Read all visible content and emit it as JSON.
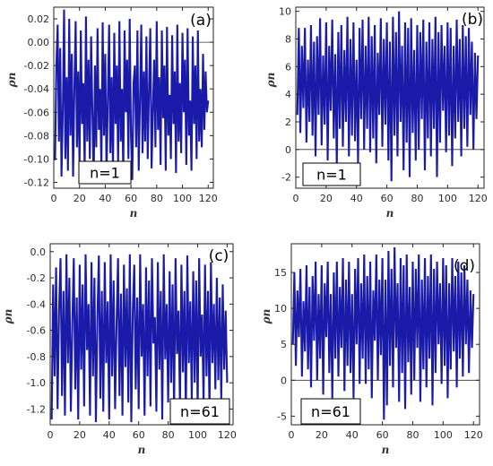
{
  "chart_data": [
    {
      "type": "line",
      "panel_label": "(a)",
      "xlabel": "n",
      "ylabel": "ρn",
      "xlim": [
        0,
        124
      ],
      "ylim": [
        -0.125,
        0.03
      ],
      "xticks": [
        0,
        20,
        40,
        60,
        80,
        100,
        120
      ],
      "yticks": [
        0.02,
        0.0,
        -0.02,
        -0.04,
        -0.06,
        -0.08,
        -0.1,
        -0.12
      ],
      "ytick_labels": [
        "0.02",
        "0.00",
        "-0.02",
        "-0.04",
        "-0.06",
        "-0.08",
        "-0.10",
        "-0.12"
      ],
      "zero_line": true,
      "box_text": "n=1",
      "series": [
        {
          "color": "#1a1aa8",
          "x": [
            1,
            2,
            3,
            4,
            5,
            6,
            7,
            8,
            9,
            10,
            11,
            12,
            13,
            14,
            15,
            16,
            17,
            18,
            19,
            20,
            21,
            22,
            23,
            24,
            25,
            26,
            27,
            28,
            29,
            30,
            31,
            32,
            33,
            34,
            35,
            36,
            37,
            38,
            39,
            40,
            41,
            42,
            43,
            44,
            45,
            46,
            47,
            48,
            49,
            50,
            51,
            52,
            53,
            54,
            55,
            56,
            57,
            58,
            59,
            60,
            61,
            62,
            63,
            64,
            65,
            66,
            67,
            68,
            69,
            70,
            71,
            72,
            73,
            74,
            75,
            76,
            77,
            78,
            79,
            80,
            81,
            82,
            83,
            84,
            85,
            86,
            87,
            88,
            89,
            90,
            91,
            92,
            93,
            94,
            95,
            96,
            97,
            98,
            99,
            100,
            101,
            102,
            103,
            104,
            105,
            106,
            107,
            108,
            109,
            110,
            111,
            112,
            113,
            114,
            115,
            116,
            117,
            118,
            119,
            120
          ],
          "y": [
            -0.101,
            -0.02,
            0.015,
            -0.085,
            -0.005,
            -0.115,
            -0.06,
            0.028,
            -0.1,
            -0.03,
            -0.11,
            0.02,
            -0.08,
            -0.01,
            -0.115,
            -0.04,
            0.018,
            -0.09,
            -0.025,
            -0.105,
            0.01,
            -0.07,
            -0.035,
            -0.11,
            0.022,
            -0.085,
            -0.015,
            -0.1,
            0.005,
            -0.06,
            -0.12,
            -0.02,
            -0.09,
            0.012,
            -0.075,
            -0.04,
            -0.108,
            0.017,
            -0.08,
            -0.01,
            -0.115,
            -0.05,
            0.015,
            -0.095,
            -0.03,
            -0.11,
            0.008,
            -0.07,
            -0.02,
            -0.104,
            0.018,
            -0.085,
            -0.04,
            -0.112,
            0.01,
            -0.06,
            -0.015,
            -0.1,
            0.02,
            -0.08,
            -0.118,
            -0.035,
            -0.02,
            -0.09,
            0.01,
            -0.11,
            -0.05,
            0.015,
            -0.095,
            -0.025,
            -0.085,
            0.005,
            -0.1,
            -0.04,
            0.012,
            -0.108,
            -0.06,
            -0.015,
            -0.09,
            0.018,
            -0.075,
            -0.03,
            -0.105,
            0.01,
            -0.065,
            -0.02,
            -0.11,
            0.013,
            -0.08,
            -0.045,
            -0.1,
            0.006,
            -0.07,
            -0.025,
            -0.112,
            0.015,
            -0.085,
            -0.035,
            -0.095,
            0.008,
            -0.06,
            -0.015,
            -0.105,
            0.012,
            -0.08,
            -0.05,
            -0.11,
            0.005,
            -0.07,
            -0.02,
            -0.1,
            0.01,
            -0.085,
            -0.04,
            -0.09,
            -0.01,
            -0.075,
            -0.025,
            -0.06,
            -0.05
          ]
        }
      ]
    },
    {
      "type": "line",
      "panel_label": "(b)",
      "xlabel": "n",
      "ylabel": "ρn",
      "xlim": [
        0,
        124
      ],
      "ylim": [
        -2.8,
        10.3
      ],
      "xticks": [
        0,
        20,
        40,
        60,
        80,
        100,
        120
      ],
      "yticks": [
        10,
        8,
        6,
        4,
        2,
        0,
        -2
      ],
      "ytick_labels": [
        "10",
        "8",
        "6",
        "4",
        "2",
        "0",
        "-2"
      ],
      "zero_line": true,
      "box_text": "n=1",
      "series": [
        {
          "color": "#1a1aa8",
          "x": [
            1,
            2,
            3,
            4,
            5,
            6,
            7,
            8,
            9,
            10,
            11,
            12,
            13,
            14,
            15,
            16,
            17,
            18,
            19,
            20,
            21,
            22,
            23,
            24,
            25,
            26,
            27,
            28,
            29,
            30,
            31,
            32,
            33,
            34,
            35,
            36,
            37,
            38,
            39,
            40,
            41,
            42,
            43,
            44,
            45,
            46,
            47,
            48,
            49,
            50,
            51,
            52,
            53,
            54,
            55,
            56,
            57,
            58,
            59,
            60,
            61,
            62,
            63,
            64,
            65,
            66,
            67,
            68,
            69,
            70,
            71,
            72,
            73,
            74,
            75,
            76,
            77,
            78,
            79,
            80,
            81,
            82,
            83,
            84,
            85,
            86,
            87,
            88,
            89,
            90,
            91,
            92,
            93,
            94,
            95,
            96,
            97,
            98,
            99,
            100,
            101,
            102,
            103,
            104,
            105,
            106,
            107,
            108,
            109,
            110,
            111,
            112,
            113,
            114,
            115,
            116,
            117,
            118,
            119,
            120
          ],
          "y": [
            2.5,
            8.8,
            1.2,
            7.5,
            3.0,
            8.8,
            0.5,
            6.5,
            2.0,
            9.0,
            1.0,
            7.8,
            -0.5,
            8.2,
            2.5,
            9.5,
            0.3,
            6.8,
            1.8,
            9.2,
            -0.8,
            7.5,
            2.8,
            9.4,
            0.8,
            6.9,
            -1.2,
            8.5,
            1.5,
            9.0,
            0.2,
            7.2,
            2.0,
            9.6,
            -0.5,
            8.0,
            1.0,
            9.2,
            0.6,
            6.5,
            -1.0,
            8.8,
            2.2,
            9.4,
            0.0,
            7.5,
            1.5,
            9.6,
            -0.2,
            8.2,
            0.8,
            9.0,
            -1.0,
            7.0,
            2.5,
            9.5,
            0.2,
            8.0,
            1.8,
            9.2,
            -0.8,
            7.8,
            -2.3,
            9.6,
            1.0,
            8.5,
            -0.5,
            10.0,
            2.0,
            7.5,
            -1.5,
            9.2,
            0.5,
            8.8,
            -2.0,
            9.5,
            1.2,
            7.2,
            -0.8,
            9.0,
            0.0,
            8.5,
            2.2,
            9.4,
            -1.5,
            7.8,
            0.8,
            9.2,
            -0.5,
            8.0,
            1.5,
            9.6,
            -2.0,
            8.5,
            0.5,
            9.0,
            2.8,
            7.5,
            -0.2,
            9.2,
            1.0,
            8.8,
            -1.2,
            7.5,
            0.8,
            9.4,
            2.0,
            8.0,
            -0.5,
            9.0,
            1.5,
            8.2,
            0.2,
            8.8,
            2.5,
            7.8,
            0.0,
            7.0,
            2.2,
            6.8
          ]
        }
      ]
    },
    {
      "type": "line",
      "panel_label": "(c)",
      "xlabel": "n",
      "ylabel": "ρn",
      "xlim": [
        0,
        124
      ],
      "ylim": [
        -1.32,
        0.06
      ],
      "xticks": [
        0,
        20,
        40,
        60,
        80,
        100,
        120
      ],
      "yticks": [
        0.0,
        -0.2,
        -0.4,
        -0.6,
        -0.8,
        -1.0,
        -1.2
      ],
      "ytick_labels": [
        "0.0",
        "-0.2",
        "-0.4",
        "-0.6",
        "-0.8",
        "-1.0",
        "-1.2"
      ],
      "zero_line": false,
      "box_text": "n=61",
      "series": [
        {
          "color": "#1a1aa8",
          "x": [
            1,
            2,
            3,
            4,
            5,
            6,
            7,
            8,
            9,
            10,
            11,
            12,
            13,
            14,
            15,
            16,
            17,
            18,
            19,
            20,
            21,
            22,
            23,
            24,
            25,
            26,
            27,
            28,
            29,
            30,
            31,
            32,
            33,
            34,
            35,
            36,
            37,
            38,
            39,
            40,
            41,
            42,
            43,
            44,
            45,
            46,
            47,
            48,
            49,
            50,
            51,
            52,
            53,
            54,
            55,
            56,
            57,
            58,
            59,
            60,
            61,
            62,
            63,
            64,
            65,
            66,
            67,
            68,
            69,
            70,
            71,
            72,
            73,
            74,
            75,
            76,
            77,
            78,
            79,
            80,
            81,
            82,
            83,
            84,
            85,
            86,
            87,
            88,
            89,
            90,
            91,
            92,
            93,
            94,
            95,
            96,
            97,
            98,
            99,
            100,
            101,
            102,
            103,
            104,
            105,
            106,
            107,
            108,
            109,
            110,
            111,
            112,
            113,
            114,
            115,
            116,
            117,
            118,
            119,
            120
          ],
          "y": [
            -1.28,
            -0.25,
            -0.95,
            -0.12,
            -1.2,
            -0.45,
            -0.05,
            -1.1,
            -0.3,
            -1.25,
            -0.02,
            -0.85,
            -0.2,
            -1.22,
            -0.55,
            -0.05,
            -1.05,
            -0.35,
            -1.28,
            -0.1,
            -0.9,
            -0.25,
            -1.18,
            -0.02,
            -0.75,
            -0.4,
            -1.25,
            -0.08,
            -0.95,
            -0.2,
            -1.3,
            -0.5,
            -0.03,
            -1.12,
            -0.3,
            -1.22,
            -0.08,
            -0.85,
            -0.38,
            -1.28,
            -0.02,
            -0.95,
            -0.22,
            -1.2,
            -0.55,
            -0.05,
            -1.1,
            -0.32,
            -1.25,
            -0.1,
            -0.88,
            -0.28,
            -1.15,
            -0.02,
            -1.3,
            -0.45,
            -0.1,
            -1.05,
            -0.35,
            -1.2,
            -0.02,
            -0.8,
            -0.4,
            -1.25,
            -0.12,
            -0.95,
            -0.22,
            -1.18,
            -0.05,
            -0.7,
            -0.5,
            -1.22,
            -0.08,
            -0.9,
            -0.3,
            -1.28,
            -0.02,
            -0.82,
            -0.4,
            -1.15,
            -0.15,
            -1.0,
            -0.25,
            -1.22,
            -0.05,
            -0.78,
            -0.45,
            -1.18,
            -0.1,
            -0.92,
            -0.3,
            -1.25,
            -0.03,
            -0.85,
            -0.38,
            -1.12,
            -0.15,
            -1.0,
            -0.22,
            -1.2,
            -0.05,
            -0.8,
            -0.48,
            -1.15,
            -0.1,
            -0.95,
            -0.3,
            -1.22,
            -0.08,
            -0.85,
            -0.4,
            -1.05,
            -0.2,
            -0.98,
            -0.35,
            -1.12,
            -0.25,
            -0.9,
            -0.45,
            -1.0
          ]
        }
      ]
    },
    {
      "type": "line",
      "panel_label": "(d)",
      "xlabel": "n",
      "ylabel": "ρn",
      "xlim": [
        0,
        124
      ],
      "ylim": [
        -6.2,
        19.0
      ],
      "xticks": [
        0,
        20,
        40,
        60,
        80,
        100,
        120
      ],
      "yticks": [
        15,
        10,
        5,
        0,
        -5
      ],
      "ytick_labels": [
        "15",
        "10",
        "5",
        "0",
        "-5"
      ],
      "zero_line": true,
      "box_text": "n=61",
      "series": [
        {
          "color": "#1a1aa8",
          "x": [
            1,
            2,
            3,
            4,
            5,
            6,
            7,
            8,
            9,
            10,
            11,
            12,
            13,
            14,
            15,
            16,
            17,
            18,
            19,
            20,
            21,
            22,
            23,
            24,
            25,
            26,
            27,
            28,
            29,
            30,
            31,
            32,
            33,
            34,
            35,
            36,
            37,
            38,
            39,
            40,
            41,
            42,
            43,
            44,
            45,
            46,
            47,
            48,
            49,
            50,
            51,
            52,
            53,
            54,
            55,
            56,
            57,
            58,
            59,
            60,
            61,
            62,
            63,
            64,
            65,
            66,
            67,
            68,
            69,
            70,
            71,
            72,
            73,
            74,
            75,
            76,
            77,
            78,
            79,
            80,
            81,
            82,
            83,
            84,
            85,
            86,
            87,
            88,
            89,
            90,
            91,
            92,
            93,
            94,
            95,
            96,
            97,
            98,
            99,
            100,
            101,
            102,
            103,
            104,
            105,
            106,
            107,
            108,
            109,
            110,
            111,
            112,
            113,
            114,
            115,
            116,
            117,
            118,
            119,
            120
          ],
          "y": [
            5.0,
            15.0,
            2.0,
            12.5,
            6.0,
            15.5,
            0.5,
            11.0,
            4.0,
            16.0,
            1.5,
            13.0,
            -1.0,
            14.5,
            5.5,
            16.5,
            0.0,
            12.0,
            3.0,
            16.0,
            -2.0,
            13.5,
            6.0,
            16.5,
            1.0,
            12.0,
            -2.5,
            15.0,
            3.0,
            16.5,
            0.5,
            13.0,
            4.5,
            17.0,
            -1.5,
            14.0,
            2.0,
            16.5,
            1.0,
            12.0,
            -2.5,
            15.5,
            5.0,
            17.0,
            -0.5,
            13.5,
            3.0,
            17.5,
            -0.5,
            14.5,
            1.5,
            16.5,
            -2.5,
            12.5,
            5.5,
            17.5,
            0.0,
            14.0,
            3.5,
            17.0,
            -5.5,
            14.0,
            -3.5,
            18.0,
            2.0,
            15.5,
            -1.0,
            18.5,
            4.5,
            13.5,
            -3.0,
            17.0,
            1.0,
            16.0,
            -4.0,
            17.5,
            2.5,
            13.0,
            -2.0,
            16.5,
            0.0,
            15.5,
            4.5,
            17.5,
            -3.0,
            14.0,
            1.5,
            17.0,
            -1.0,
            14.5,
            3.0,
            17.5,
            -3.5,
            15.5,
            1.0,
            16.5,
            5.0,
            13.5,
            -0.5,
            17.0,
            2.0,
            16.0,
            -2.5,
            13.5,
            1.5,
            17.0,
            4.0,
            14.5,
            -1.0,
            16.5,
            3.0,
            15.0,
            0.5,
            16.0,
            5.0,
            14.0,
            1.0,
            12.5,
            4.5,
            12.0
          ]
        }
      ]
    }
  ]
}
